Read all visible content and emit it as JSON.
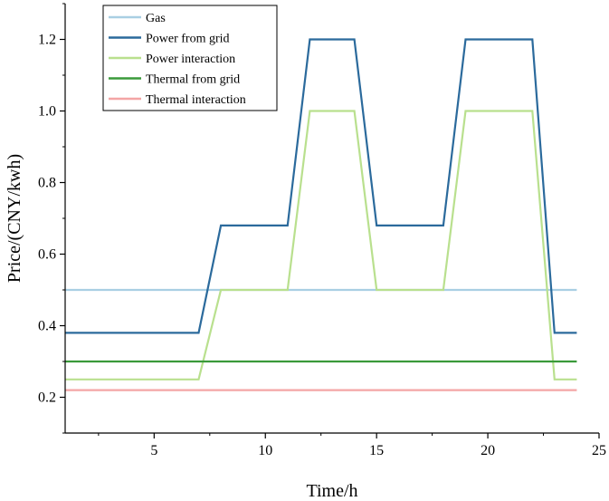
{
  "chart_data": {
    "type": "line",
    "title": "",
    "xlabel": "Time/h",
    "ylabel": "Price/(CNY/kwh)",
    "xlim": [
      1,
      25
    ],
    "ylim": [
      0.1,
      1.3
    ],
    "xticks": [
      5,
      10,
      15,
      20,
      25
    ],
    "yticks": [
      0.2,
      0.4,
      0.6,
      0.8,
      1.0,
      1.2
    ],
    "ytick_labels": [
      "0.2",
      "0.4",
      "0.6",
      "0.8",
      "1.0",
      "1.2"
    ],
    "legend_position": "top-left",
    "series": [
      {
        "name": "Gas",
        "color": "#a9cfe3",
        "x": [
          1,
          24
        ],
        "y": [
          0.5,
          0.5
        ]
      },
      {
        "name": "Power from grid",
        "color": "#2b6a9c",
        "x": [
          1,
          7,
          8,
          11,
          12,
          14,
          15,
          18,
          19,
          22,
          23,
          24
        ],
        "y": [
          0.38,
          0.38,
          0.68,
          0.68,
          1.2,
          1.2,
          0.68,
          0.68,
          1.2,
          1.2,
          0.38,
          0.38
        ]
      },
      {
        "name": "Power interaction",
        "color": "#b9e08e",
        "x": [
          1,
          7,
          8,
          11,
          12,
          14,
          15,
          18,
          19,
          22,
          23,
          24
        ],
        "y": [
          0.25,
          0.25,
          0.5,
          0.5,
          1.0,
          1.0,
          0.5,
          0.5,
          1.0,
          1.0,
          0.25,
          0.25
        ]
      },
      {
        "name": "Thermal from grid",
        "color": "#3a9a3a",
        "x": [
          1,
          24
        ],
        "y": [
          0.3,
          0.3
        ]
      },
      {
        "name": "Thermal interaction",
        "color": "#f4a5a5",
        "x": [
          1,
          24
        ],
        "y": [
          0.22,
          0.22
        ]
      }
    ]
  }
}
